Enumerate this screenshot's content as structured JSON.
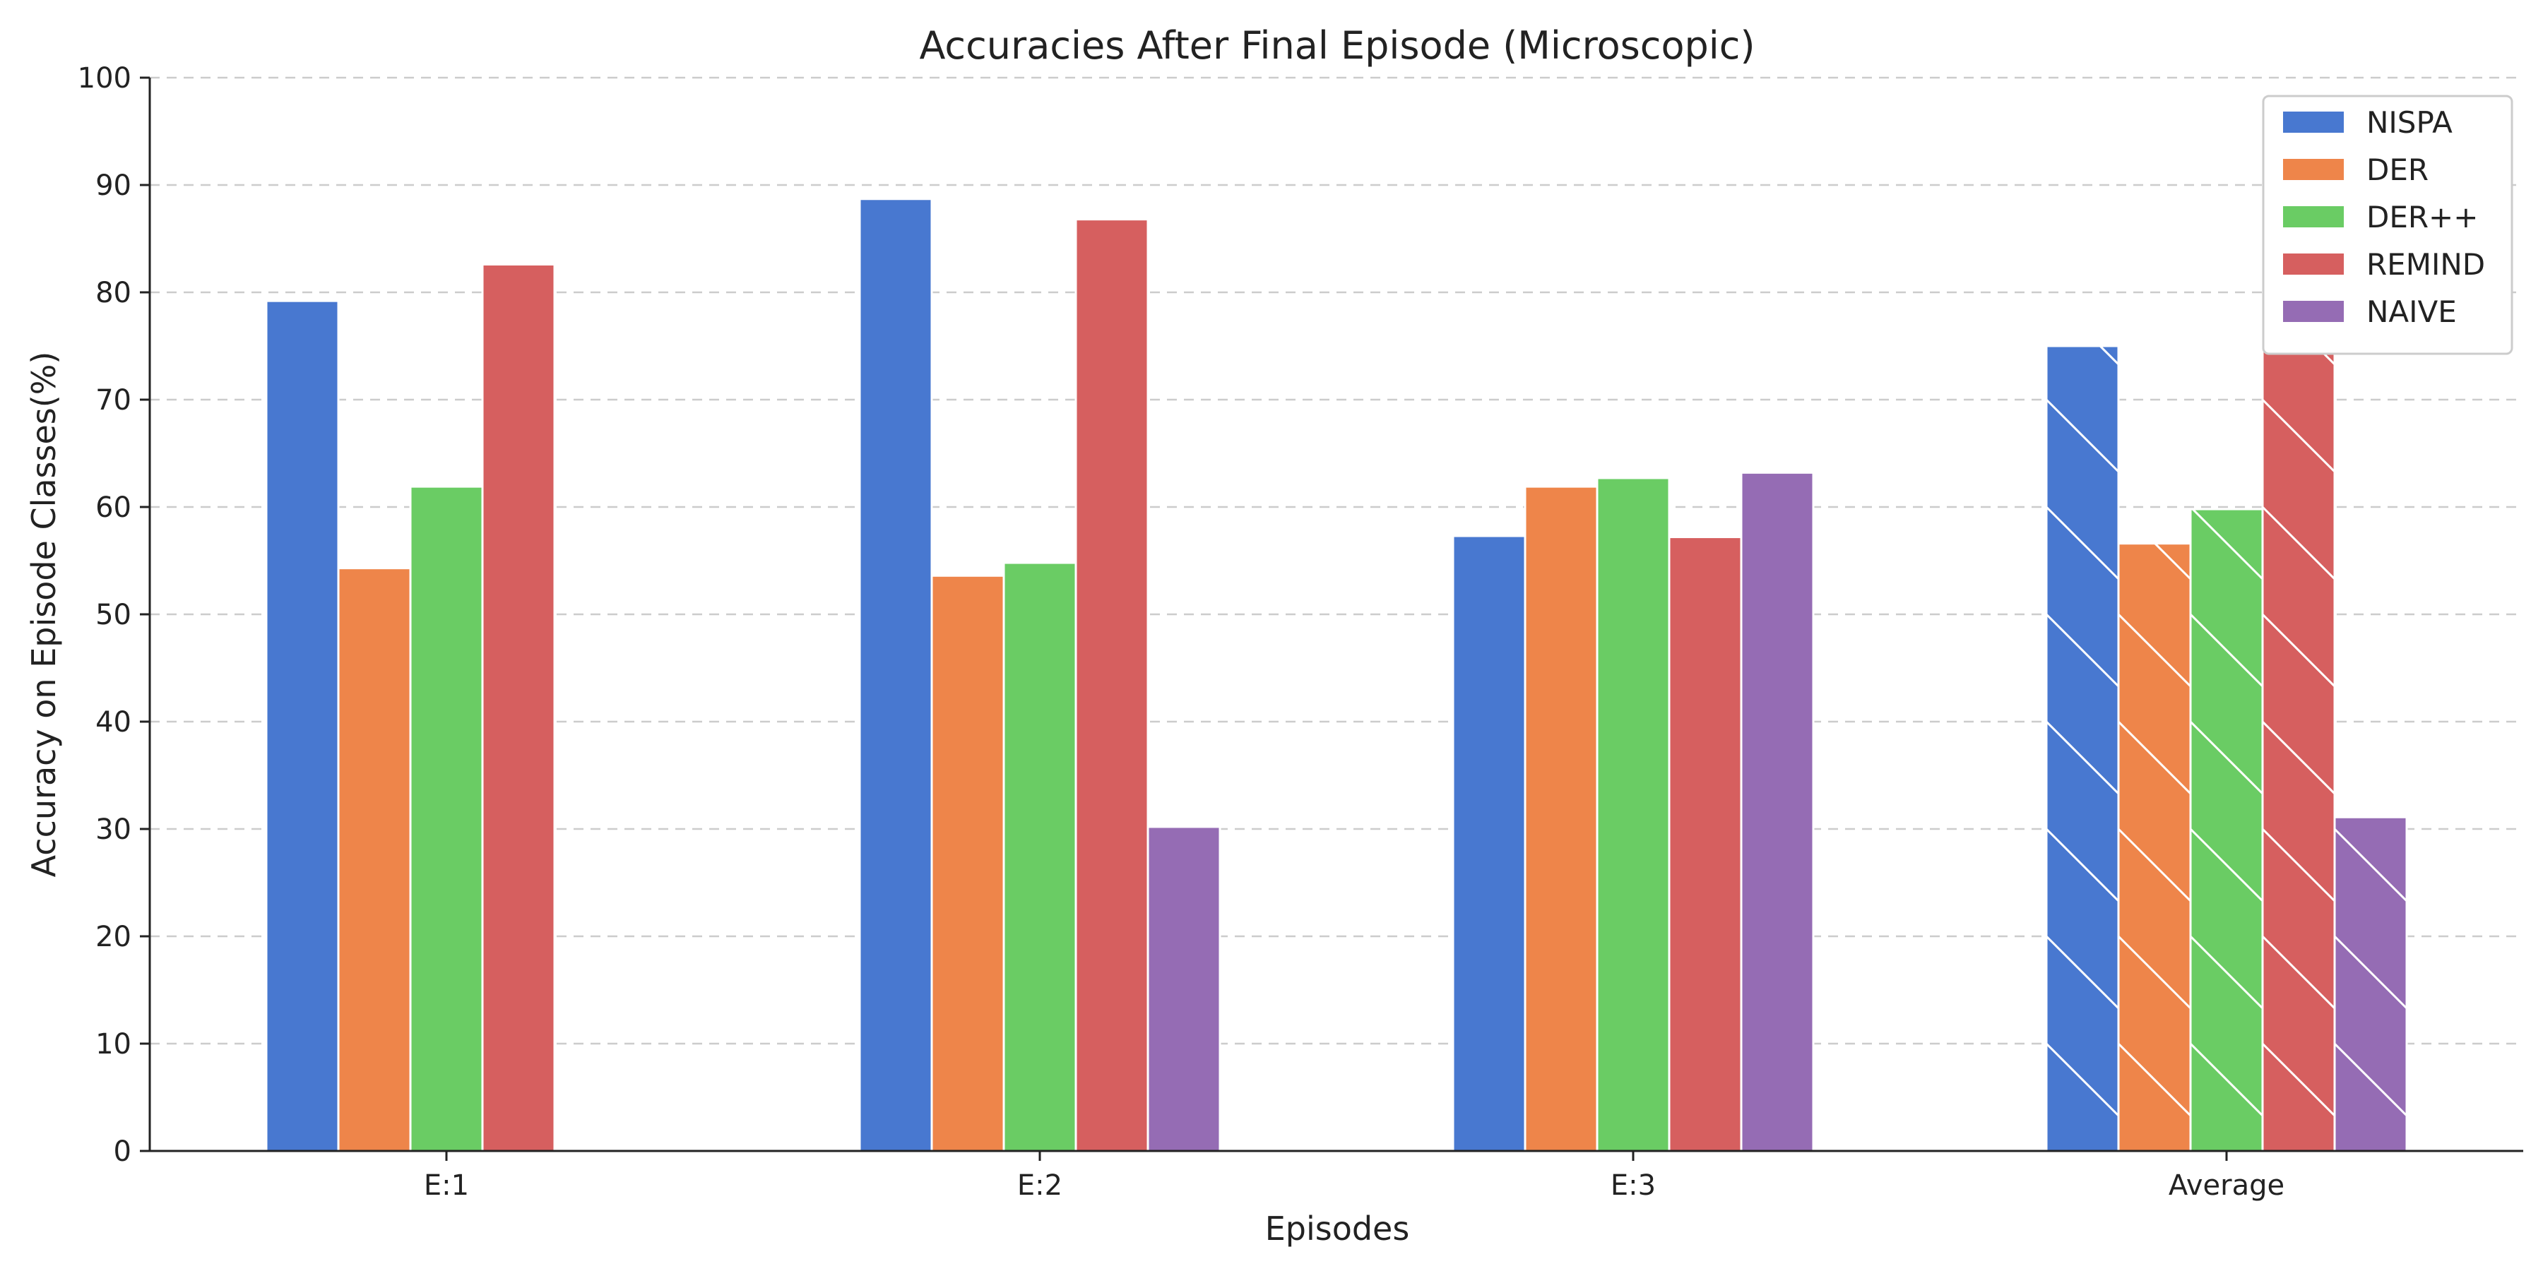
{
  "chart_data": {
    "type": "bar",
    "title": "Accuracies After Final Episode (Microscopic)",
    "xlabel": "Episodes",
    "ylabel": "Accuracy on Episode Classes(%)",
    "categories": [
      "E:1",
      "E:2",
      "E:3",
      "Average"
    ],
    "ylim": [
      0,
      100
    ],
    "yticks": [
      0,
      10,
      20,
      30,
      40,
      50,
      60,
      70,
      80,
      90,
      100
    ],
    "grid": "horizontal dashed",
    "legend_position": "top-right",
    "hatched_categories": [
      "Average"
    ],
    "series": [
      {
        "name": "NISPA",
        "color": "#4878d0",
        "values": [
          79.2,
          88.7,
          57.3,
          75.0
        ]
      },
      {
        "name": "DER",
        "color": "#ee854a",
        "values": [
          54.3,
          53.6,
          61.9,
          56.6
        ]
      },
      {
        "name": "DER++",
        "color": "#6acc64",
        "values": [
          61.9,
          54.8,
          62.7,
          59.8
        ]
      },
      {
        "name": "REMIND",
        "color": "#d65f5f",
        "values": [
          82.6,
          86.8,
          57.2,
          75.6
        ]
      },
      {
        "name": "NAIVE",
        "color": "#956cb4",
        "values": [
          null,
          30.2,
          63.2,
          31.1
        ]
      }
    ]
  }
}
